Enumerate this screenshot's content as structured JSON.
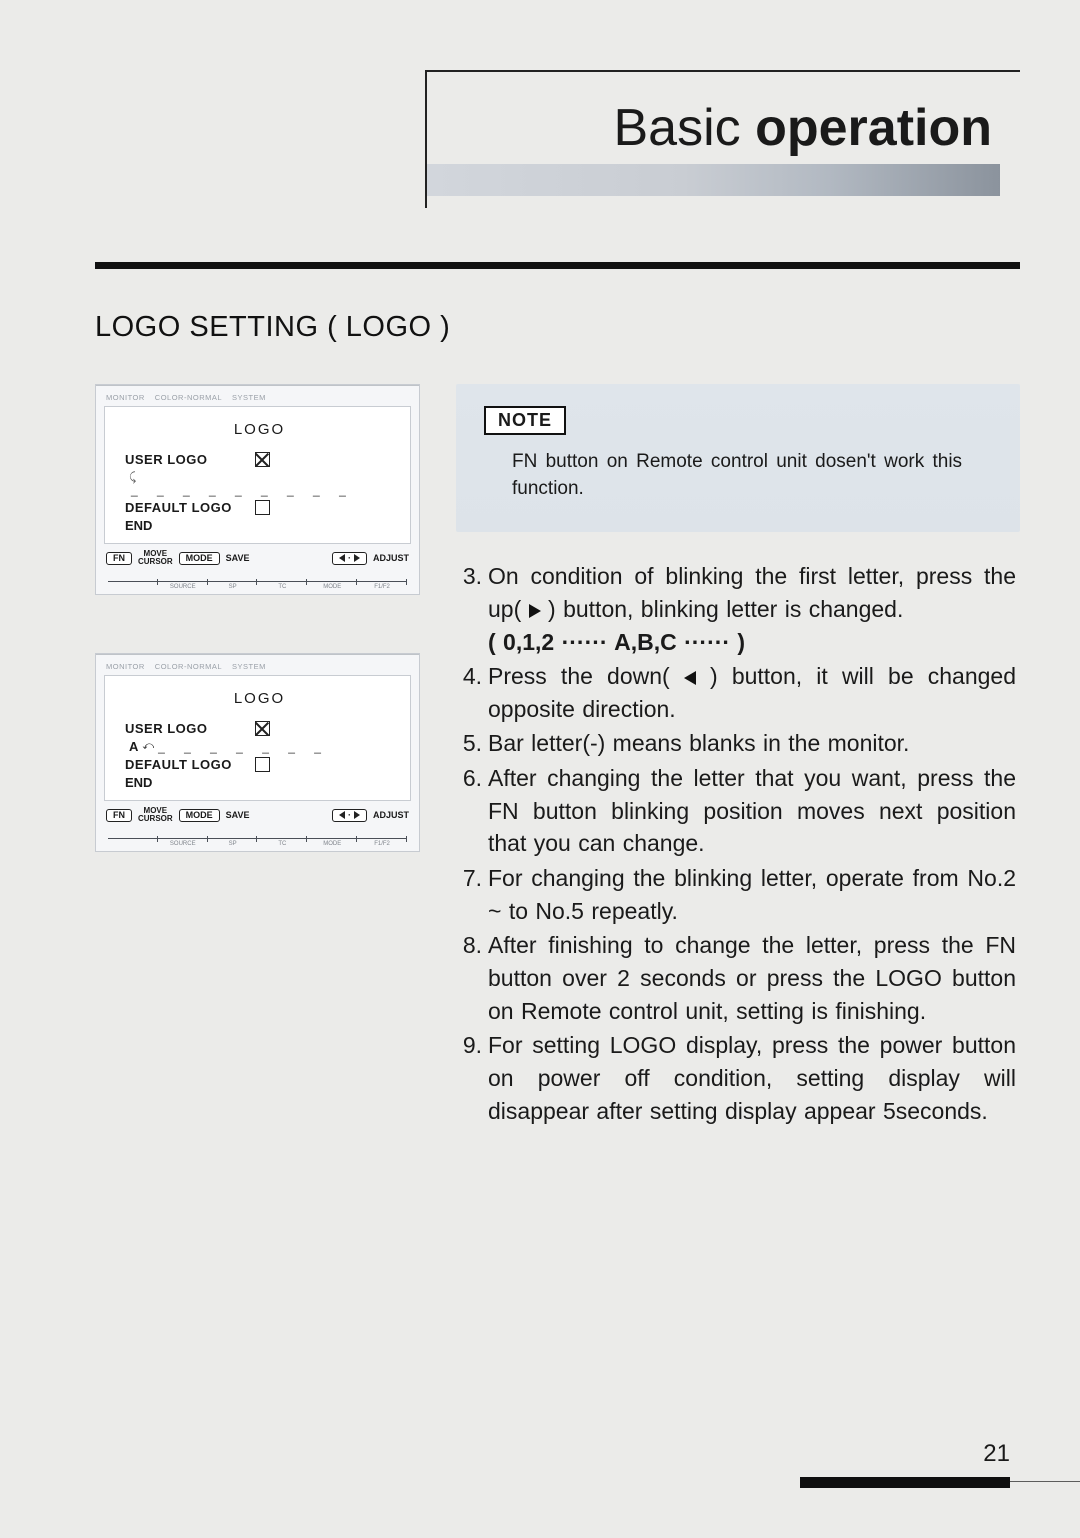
{
  "header": {
    "title_plain": "Basic ",
    "title_bold": "operation"
  },
  "section_title": "LOGO SETTING ( LOGO )",
  "panels": {
    "tiny_header": [
      "MONITOR",
      "COLOR-NORMAL",
      "SYSTEM"
    ],
    "title": "LOGO",
    "user_logo": "USER LOGO",
    "default_logo": "DEFAULT LOGO",
    "end": "END",
    "user_checked": true,
    "default_checked": false,
    "variant2_prefix": "A",
    "underdash": "_ _ _ _ _ _ _ _ _",
    "underdash2": "_ _ _ _ _ _ _",
    "footer_fn": "FN",
    "footer_move": "MOVE",
    "footer_cursor": "CURSOR",
    "footer_mode": "MODE",
    "footer_save": "SAVE",
    "footer_adjust": "ADJUST",
    "scale_labels": [
      "",
      "SOURCE",
      "SP",
      "TC",
      "MODE",
      "F1/F2"
    ]
  },
  "note": {
    "label": "NOTE",
    "text": "FN button on Remote control unit dosen't work this function."
  },
  "steps": {
    "s3a": "On condition of blinking the first letter, press the up(",
    "s3b": ") button, blinking letter is changed.",
    "s3c": "( 0,1,2 ······ A,B,C ······ )",
    "s4a": "Press the down(",
    "s4b": ") button, it will be changed opposite direction.",
    "s5": "Bar letter(-) means blanks in the monitor.",
    "s6": "After changing the letter that you want, press the FN button blinking position moves next position that you can change.",
    "s7": "For changing the blinking letter, operate from No.2 ~ to No.5 repeatly.",
    "s8": "After finishing to change the letter, press the FN button over 2 seconds or press the LOGO button on Remote control unit, setting is finishing.",
    "s9": "For setting LOGO display, press the power button on power off condition, setting display will disappear after setting display appear 5seconds."
  },
  "page_number": "21",
  "colors": {
    "page_bg": "#ebebe9",
    "text": "#1a1a1a",
    "rule": "#111111",
    "note_bg_top": "#dfe5eb",
    "note_bg_bot": "#dde3e9",
    "fade_start": "#d2d6dc",
    "fade_end": "#8b939d",
    "panel_bg": "#f5f6f8",
    "panel_border": "#c7cbd1"
  }
}
